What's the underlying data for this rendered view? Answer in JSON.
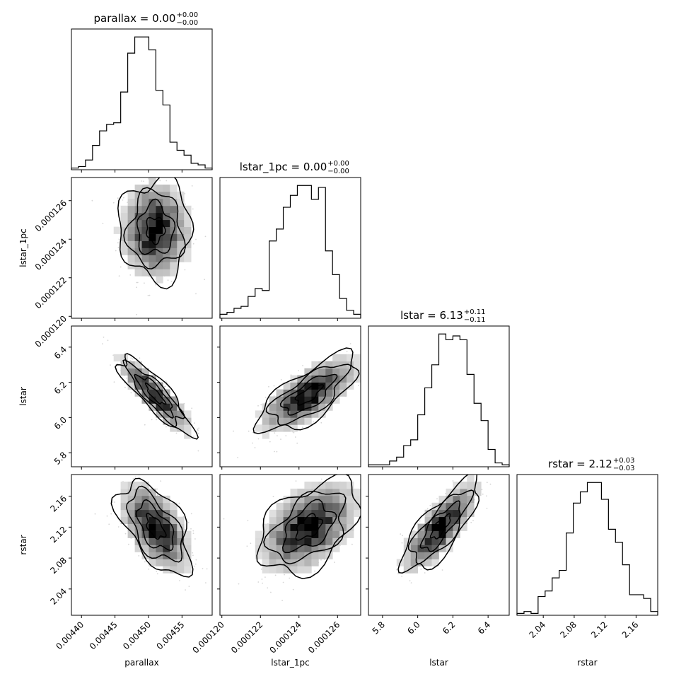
{
  "chart_data": {
    "type": "corner",
    "parameters": [
      "parallax",
      "lstar_1pc",
      "lstar",
      "rstar"
    ],
    "axis_labels": [
      "parallax",
      "lstar_1pc",
      "lstar",
      "rstar"
    ],
    "titles": [
      {
        "name": "parallax",
        "value": "0.00",
        "plus": "+0.00",
        "minus": "−0.00"
      },
      {
        "name": "lstar_1pc",
        "value": "0.00",
        "plus": "+0.00",
        "minus": "−0.00"
      },
      {
        "name": "lstar",
        "value": "6.13",
        "plus": "+0.11",
        "minus": "−0.11"
      },
      {
        "name": "rstar",
        "value": "2.12",
        "plus": "+0.03",
        "minus": "−0.03"
      }
    ],
    "ranges": [
      [
        0.004385,
        0.004595
      ],
      [
        0.0001199,
        0.0001272
      ],
      [
        5.72,
        6.52
      ],
      [
        2.006,
        2.188
      ]
    ],
    "ticks": [
      {
        "values": [
          0.0044,
          0.00445,
          0.0045,
          0.00455,
          0.0046
        ],
        "labels": [
          "0.00440",
          "0.00445",
          "0.00450",
          "0.00455",
          "0.00460"
        ]
      },
      {
        "values": [
          0.00012,
          0.000122,
          0.000124,
          0.000126
        ],
        "labels": [
          "0.000120",
          "0.000122",
          "0.000124",
          "0.000126"
        ]
      },
      {
        "values": [
          5.8,
          6.0,
          6.2,
          6.4
        ],
        "labels": [
          "5.8",
          "6.0",
          "6.2",
          "6.4"
        ]
      },
      {
        "values": [
          2.04,
          2.08,
          2.12,
          2.16
        ],
        "labels": [
          "2.04",
          "2.08",
          "2.12",
          "2.16"
        ]
      }
    ],
    "histograms": [
      [
        1,
        2,
        6,
        15,
        24,
        28,
        29,
        48,
        72,
        82,
        82,
        74,
        49,
        40,
        17,
        12,
        9,
        4,
        3,
        1
      ],
      [
        2,
        3,
        5,
        6,
        11,
        15,
        14,
        39,
        45,
        56,
        62,
        67,
        67,
        60,
        66,
        34,
        22,
        10,
        4,
        2
      ],
      [
        1,
        1,
        1,
        3,
        5,
        11,
        14,
        27,
        41,
        53,
        69,
        66,
        68,
        66,
        48,
        33,
        24,
        9,
        2,
        1
      ],
      [
        1,
        2,
        1,
        10,
        13,
        20,
        24,
        44,
        60,
        66,
        71,
        71,
        62,
        46,
        39,
        27,
        11,
        11,
        9,
        2
      ]
    ],
    "correlation": [
      [
        1.0,
        0.0,
        -0.86,
        -0.55
      ],
      [
        0.0,
        1.0,
        0.72,
        0.45
      ],
      [
        -0.86,
        0.72,
        1.0,
        0.78
      ],
      [
        -0.55,
        0.45,
        0.78,
        1.0
      ]
    ],
    "centers": [
      0.00451,
      0.0001245,
      6.13,
      2.12
    ],
    "sigmas": [
      2.7e-05,
      1.3e-06,
      0.11,
      0.03
    ]
  }
}
